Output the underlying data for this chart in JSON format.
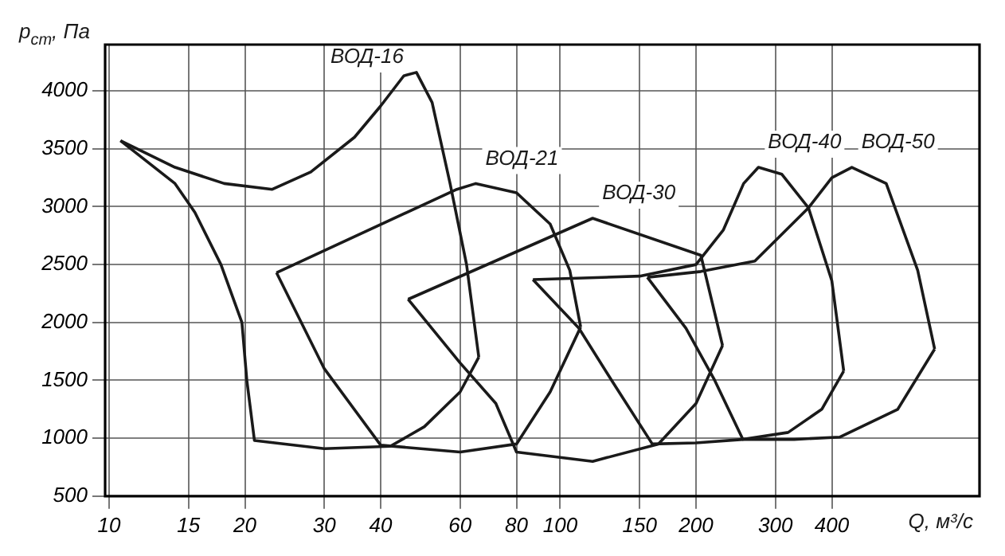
{
  "chart_data": {
    "type": "line",
    "ylabel": "p$_{ст}$, Па",
    "xlabel": "Q, м³/с",
    "log": "x",
    "grid": true,
    "legend": false,
    "marker": "none",
    "line_style": "solid",
    "xlim": [
      9.8,
      850
    ],
    "xticks": [
      10,
      15,
      20,
      30,
      40,
      60,
      80,
      100,
      150,
      200,
      300,
      400
    ],
    "ylim": [
      500,
      4400
    ],
    "yticks": [
      500,
      1000,
      1500,
      2000,
      2500,
      3000,
      3500,
      4000
    ],
    "series": [
      {
        "name": "ВОД-16",
        "color": "#1a1a1a",
        "x": [
          10.6,
          14,
          18,
          23,
          28,
          35,
          40,
          45,
          48,
          52,
          57,
          62,
          66
        ],
        "values": [
          3570,
          3340,
          3200,
          3150,
          3300,
          3600,
          3870,
          4130,
          4160,
          3900,
          3200,
          2500,
          1700
        ]
      },
      {
        "color": "#1a1a1a",
        "x": [
          10.6,
          14,
          15.5,
          17.7,
          19.7,
          20.2,
          21,
          30,
          42,
          50,
          60,
          66
        ],
        "values": [
          3570,
          3200,
          2950,
          2500,
          2000,
          1500,
          980,
          910,
          930,
          1100,
          1400,
          1700
        ]
      },
      {
        "name": "ВОД-21",
        "color": "#1a1a1a",
        "x": [
          23.5,
          59,
          65,
          80,
          95,
          105,
          111
        ],
        "values": [
          2430,
          3150,
          3200,
          3120,
          2850,
          2450,
          1960
        ]
      },
      {
        "color": "#1a1a1a",
        "x": [
          23.5,
          30,
          40,
          60,
          80,
          95,
          111
        ],
        "values": [
          2430,
          1600,
          940,
          880,
          950,
          1400,
          1960
        ]
      },
      {
        "name": "ВОД-30",
        "color": "#1a1a1a",
        "x": [
          46,
          118,
          205,
          229
        ],
        "values": [
          2200,
          2900,
          2580,
          1800
        ]
      },
      {
        "color": "#1a1a1a",
        "x": [
          46,
          60,
          72,
          80,
          118,
          165,
          200,
          229
        ],
        "values": [
          2200,
          1650,
          1300,
          880,
          800,
          950,
          1300,
          1800
        ]
      },
      {
        "name": "ВОД-40",
        "color": "#1a1a1a",
        "x": [
          87,
          150,
          200,
          230,
          255,
          275,
          310,
          355,
          400,
          425
        ],
        "values": [
          2370,
          2400,
          2500,
          2800,
          3200,
          3340,
          3280,
          2990,
          2360,
          1580
        ]
      },
      {
        "color": "#1a1a1a",
        "x": [
          87,
          110,
          130,
          160,
          200,
          254,
          320,
          380,
          425
        ],
        "values": [
          2370,
          1950,
          1500,
          950,
          960,
          990,
          1050,
          1250,
          1580
        ]
      },
      {
        "name": "ВОД-50",
        "color": "#1a1a1a",
        "x": [
          156,
          205,
          270,
          355,
          400,
          443,
          528,
          620,
          676
        ],
        "values": [
          2390,
          2440,
          2530,
          2990,
          3250,
          3340,
          3200,
          2450,
          1770
        ]
      },
      {
        "color": "#1a1a1a",
        "x": [
          156,
          190,
          220,
          254,
          330,
          417,
          560,
          676
        ],
        "values": [
          2390,
          1950,
          1500,
          990,
          990,
          1010,
          1250,
          1770
        ]
      }
    ]
  }
}
